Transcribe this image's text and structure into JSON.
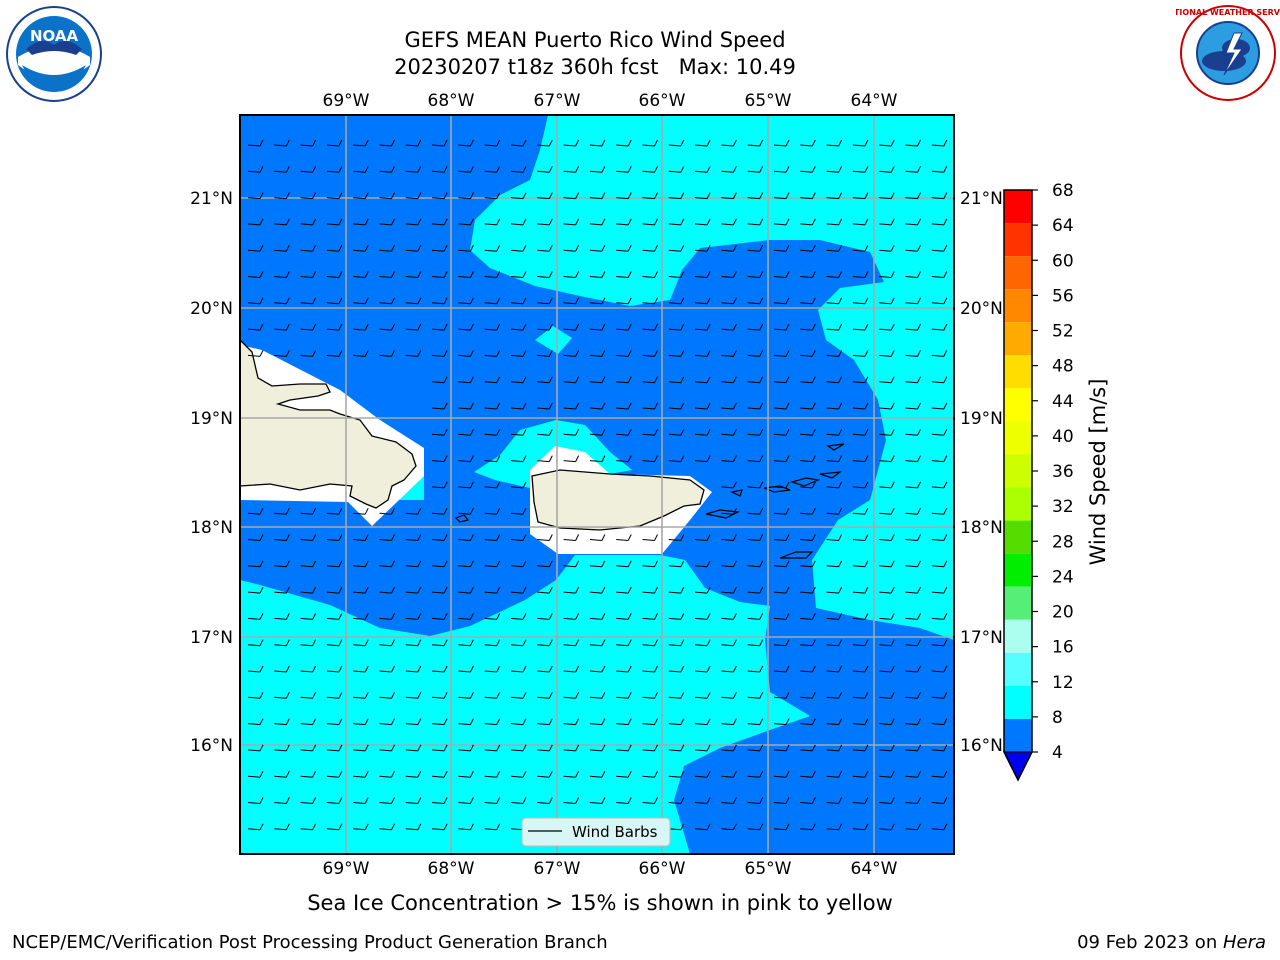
{
  "title_line1": "GEFS MEAN Puerto Rico Wind Speed",
  "title_line2": "20230207 t18z 360h fcst   Max: 10.49",
  "caption": "Sea Ice Concentration > 15% is shown in pink to yellow",
  "footer_left": "NCEP/EMC/Verification Post Processing Product Generation Branch",
  "footer_date": "09 Feb 2023 on ",
  "footer_host": "Hera",
  "legend_label": "Wind Barbs",
  "logos": {
    "left": "NOAA",
    "right": "NATIONAL WEATHER SERVICE"
  },
  "map": {
    "lon_labels": [
      "69°W",
      "68°W",
      "67°W",
      "66°W",
      "65°W",
      "64°W"
    ],
    "lat_labels": [
      "21°N",
      "20°N",
      "19°N",
      "18°N",
      "17°N",
      "16°N"
    ],
    "colors": {
      "band_4_8": "#0077ff",
      "band_8_12": "#00ffff",
      "land": "#efefdc",
      "white": "#ffffff"
    }
  },
  "colorbar": {
    "label": "Wind Speed [m/s]",
    "ticks": [
      "68",
      "64",
      "60",
      "56",
      "52",
      "48",
      "44",
      "40",
      "36",
      "32",
      "28",
      "24",
      "20",
      "16",
      "12",
      "8",
      "4"
    ],
    "colors": [
      "#ff0000",
      "#ff3300",
      "#ff6600",
      "#ff8800",
      "#ffaa00",
      "#ffdd00",
      "#ffff00",
      "#eeff00",
      "#ccff00",
      "#aaff00",
      "#55dd00",
      "#00ee00",
      "#55ee77",
      "#aaffee",
      "#55ffff",
      "#00ffff",
      "#0077ff"
    ],
    "extend_color": "#0000ee"
  }
}
